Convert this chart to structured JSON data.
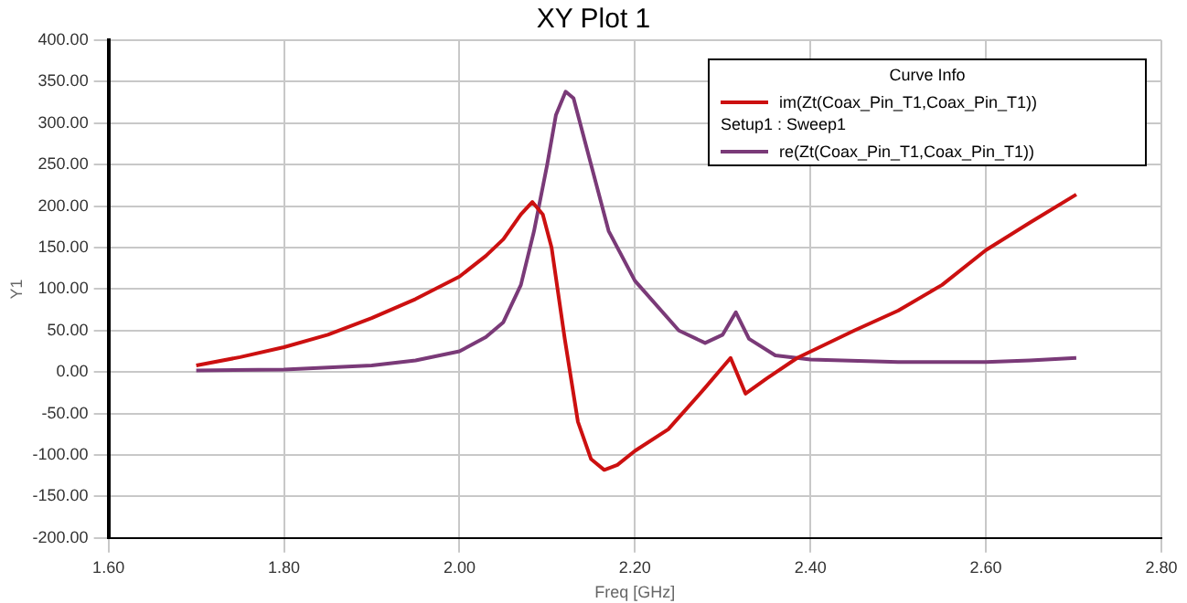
{
  "chart_data": {
    "type": "line",
    "title": "XY Plot 1",
    "xlabel": "Freq [GHz]",
    "ylabel": "Y1",
    "legend_title": "Curve Info",
    "annotations": [
      "Setup1 : Sweep1"
    ],
    "xlim": [
      1.6,
      2.8
    ],
    "xticks": [
      {
        "value": 1.6,
        "label": "1.60"
      },
      {
        "value": 1.8,
        "label": "1.80"
      },
      {
        "value": 2.0,
        "label": "2.00"
      },
      {
        "value": 2.2,
        "label": "2.20"
      },
      {
        "value": 2.4,
        "label": "2.40"
      },
      {
        "value": 2.6,
        "label": "2.60"
      },
      {
        "value": 2.8,
        "label": "2.80"
      }
    ],
    "ylim": [
      -200,
      400
    ],
    "yticks": [
      {
        "value": -200,
        "label": "-200.00"
      },
      {
        "value": -150,
        "label": "-150.00"
      },
      {
        "value": -100,
        "label": "-100.00"
      },
      {
        "value": -50,
        "label": "-50.00"
      },
      {
        "value": 0,
        "label": "0.00"
      },
      {
        "value": 50,
        "label": "50.00"
      },
      {
        "value": 100,
        "label": "100.00"
      },
      {
        "value": 150,
        "label": "150.00"
      },
      {
        "value": 200,
        "label": "200.00"
      },
      {
        "value": 250,
        "label": "250.00"
      },
      {
        "value": 300,
        "label": "300.00"
      },
      {
        "value": 350,
        "label": "350.00"
      },
      {
        "value": 400,
        "label": "400.00"
      }
    ],
    "grid": true,
    "legend": "top right",
    "marker": "none",
    "line_style": "solid",
    "series": [
      {
        "name": "im(Zt(Coax_Pin_T1,Coax_Pin_T1))",
        "color": "#cc1010",
        "x": [
          1.7,
          1.75,
          1.8,
          1.85,
          1.9,
          1.95,
          2.0,
          2.03,
          2.05,
          2.07,
          2.083,
          2.095,
          2.105,
          2.12,
          2.135,
          2.15,
          2.165,
          2.18,
          2.2,
          2.238,
          2.28,
          2.309,
          2.326,
          2.35,
          2.385,
          2.45,
          2.5,
          2.55,
          2.6,
          2.65,
          2.703
        ],
        "values": [
          8,
          18,
          30,
          45,
          65,
          88,
          115,
          140,
          160,
          190,
          205,
          190,
          150,
          40,
          -60,
          -105,
          -118,
          -112,
          -95,
          -69,
          -19,
          17,
          -26,
          -8,
          17,
          50,
          74,
          105,
          147,
          180,
          214
        ]
      },
      {
        "name": "re(Zt(Coax_Pin_T1,Coax_Pin_T1))",
        "color": "#7a3a78",
        "x": [
          1.7,
          1.8,
          1.9,
          1.95,
          2.0,
          2.03,
          2.05,
          2.07,
          2.085,
          2.1,
          2.11,
          2.121,
          2.13,
          2.15,
          2.17,
          2.2,
          2.25,
          2.28,
          2.3,
          2.315,
          2.33,
          2.36,
          2.4,
          2.5,
          2.6,
          2.65,
          2.703
        ],
        "values": [
          2,
          3,
          8,
          14,
          25,
          42,
          60,
          105,
          170,
          250,
          310,
          338,
          330,
          250,
          170,
          110,
          50,
          35,
          45,
          72,
          40,
          20,
          15,
          12,
          12,
          14,
          17
        ]
      }
    ]
  }
}
